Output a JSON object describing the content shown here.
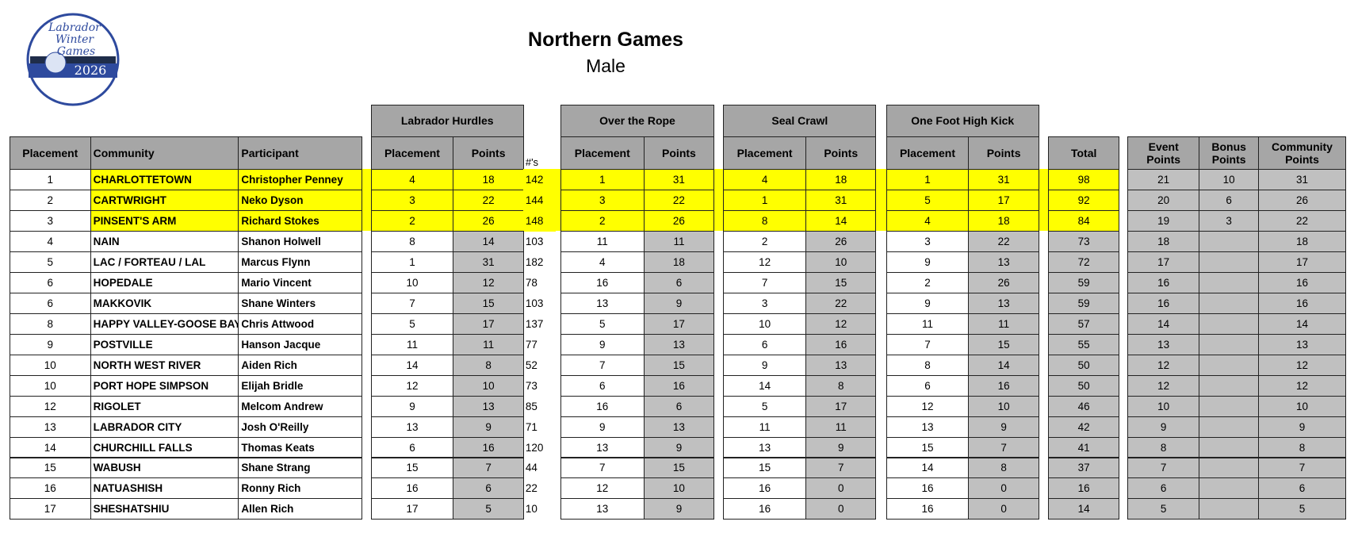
{
  "logo": {
    "lines": [
      "Labrador",
      "Winter",
      "Games"
    ],
    "year": "2026"
  },
  "header": {
    "title": "Northern Games",
    "subtitle": "Male"
  },
  "table": {
    "event_groups": [
      "Labrador Hurdles",
      "Over the Rope",
      "Seal Crawl",
      "One Foot High Kick"
    ],
    "columns": [
      "Placement",
      "Community",
      "Participant",
      "Placement",
      "Points",
      "#'s",
      "Placement",
      "Points",
      "Placement",
      "Points",
      "Placement",
      "Points",
      "Total",
      "Event Points",
      "Bonus Points",
      "Community Points"
    ],
    "rows": [
      [
        1,
        "CHARLOTTETOWN",
        "Christopher Penney",
        4,
        18,
        142,
        1,
        31,
        4,
        18,
        1,
        31,
        98,
        21,
        10,
        31
      ],
      [
        2,
        "CARTWRIGHT",
        "Neko Dyson",
        3,
        22,
        144,
        3,
        22,
        1,
        31,
        5,
        17,
        92,
        20,
        6,
        26
      ],
      [
        3,
        "PINSENT'S ARM",
        "Richard Stokes",
        2,
        26,
        148,
        2,
        26,
        8,
        14,
        4,
        18,
        84,
        19,
        3,
        22
      ],
      [
        4,
        "NAIN",
        "Shanon Holwell",
        8,
        14,
        103,
        11,
        11,
        2,
        26,
        3,
        22,
        73,
        18,
        null,
        18
      ],
      [
        5,
        "LAC / FORTEAU / LAL",
        "Marcus Flynn",
        1,
        31,
        182,
        4,
        18,
        12,
        10,
        9,
        13,
        72,
        17,
        null,
        17
      ],
      [
        6,
        "HOPEDALE",
        "Mario Vincent",
        10,
        12,
        78,
        16,
        6,
        7,
        15,
        2,
        26,
        59,
        16,
        null,
        16
      ],
      [
        6,
        "MAKKOVIK",
        "Shane Winters",
        7,
        15,
        103,
        13,
        9,
        3,
        22,
        9,
        13,
        59,
        16,
        null,
        16
      ],
      [
        8,
        "HAPPY VALLEY-GOOSE BAY",
        "Chris Attwood",
        5,
        17,
        137,
        5,
        17,
        10,
        12,
        11,
        11,
        57,
        14,
        null,
        14
      ],
      [
        9,
        "POSTVILLE",
        "Hanson Jacque",
        11,
        11,
        77,
        9,
        13,
        6,
        16,
        7,
        15,
        55,
        13,
        null,
        13
      ],
      [
        10,
        "NORTH WEST RIVER",
        "Aiden Rich",
        14,
        8,
        52,
        7,
        15,
        9,
        13,
        8,
        14,
        50,
        12,
        null,
        12
      ],
      [
        10,
        "PORT HOPE SIMPSON",
        "Elijah Bridle",
        12,
        10,
        73,
        6,
        16,
        14,
        8,
        6,
        16,
        50,
        12,
        null,
        12
      ],
      [
        12,
        "RIGOLET",
        "Melcom Andrew",
        9,
        13,
        85,
        16,
        6,
        5,
        17,
        12,
        10,
        46,
        10,
        null,
        10
      ],
      [
        13,
        "LABRADOR CITY",
        "Josh O'Reilly",
        13,
        9,
        71,
        9,
        13,
        11,
        11,
        13,
        9,
        42,
        9,
        null,
        9
      ],
      [
        14,
        "CHURCHILL FALLS",
        "Thomas Keats",
        6,
        16,
        120,
        13,
        9,
        13,
        9,
        15,
        7,
        41,
        8,
        null,
        8
      ],
      [
        15,
        "WABUSH",
        "Shane Strang",
        15,
        7,
        44,
        7,
        15,
        15,
        7,
        14,
        8,
        37,
        7,
        null,
        7
      ],
      [
        16,
        "NATUASHISH",
        "Ronny Rich",
        16,
        6,
        22,
        12,
        10,
        16,
        0,
        16,
        0,
        16,
        6,
        null,
        6
      ],
      [
        17,
        "SHESHATSHIU",
        "Allen Rich",
        17,
        5,
        10,
        13,
        9,
        16,
        0,
        16,
        0,
        14,
        5,
        null,
        5
      ]
    ]
  }
}
